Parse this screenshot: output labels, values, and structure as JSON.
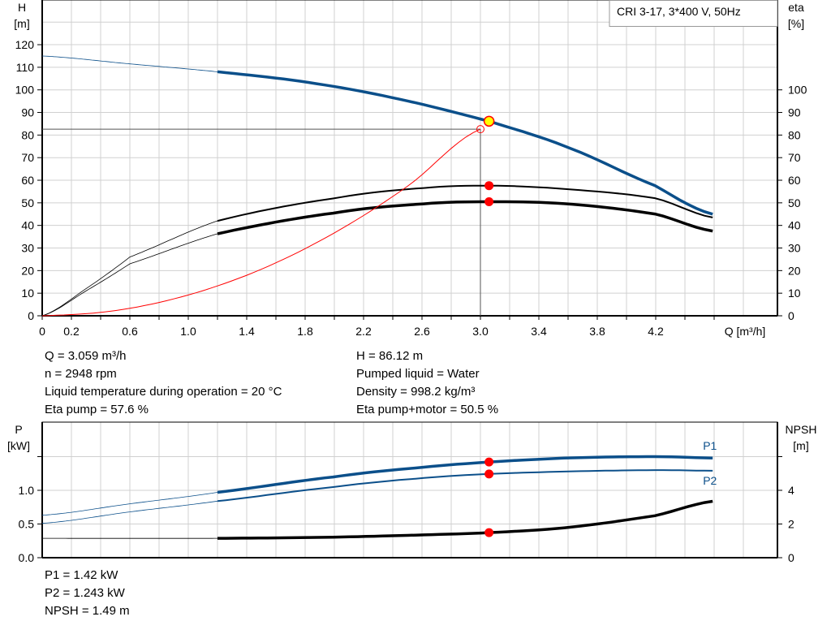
{
  "legend_title": "CRI 3-17, 3*400 V, 50Hz",
  "colors": {
    "head": "#0b4f8a",
    "eta": "#000000",
    "system": "#ff0000",
    "op_point": "#ff0000",
    "op_point_head_fill": "#ffff00",
    "grid": "#d0d0d0"
  },
  "chart_data": [
    {
      "type": "line",
      "x_axis": {
        "label": "Q [m³/h]",
        "range": [
          0,
          5.0
        ],
        "tick_labels": [
          "0",
          "0.2",
          "0.6",
          "1.0",
          "1.4",
          "1.8",
          "2.2",
          "2.6",
          "3.0",
          "3.4",
          "3.8",
          "4.2"
        ],
        "tick_values": [
          0,
          0.2,
          0.6,
          1.0,
          1.4,
          1.8,
          2.2,
          2.6,
          3.0,
          3.4,
          3.8,
          4.2
        ]
      },
      "y_axis_left": {
        "label_line1": "H",
        "label_line2": "[m]",
        "range": [
          0,
          120
        ],
        "ticks": [
          0,
          10,
          20,
          30,
          40,
          50,
          60,
          70,
          80,
          90,
          100,
          110,
          120
        ]
      },
      "y_axis_right": {
        "label_line1": "eta",
        "label_line2": "[%]",
        "range": [
          0,
          100
        ],
        "ticks": [
          0,
          10,
          20,
          30,
          40,
          50,
          60,
          70,
          80,
          90,
          100
        ]
      },
      "grid": true,
      "series": [
        {
          "id": "head",
          "axis": "left",
          "thin_below": 1.2,
          "points": [
            [
              0,
              115
            ],
            [
              0.6,
              111.5
            ],
            [
              1.2,
              108
            ],
            [
              1.8,
              103.5
            ],
            [
              2.4,
              96.5
            ],
            [
              3.059,
              86.12
            ],
            [
              3.6,
              74.5
            ],
            [
              4.2,
              57.5
            ],
            [
              4.59,
              45
            ]
          ]
        },
        {
          "id": "eta_pump",
          "axis": "right",
          "thin_below": 1.2,
          "points": [
            [
              0,
              0
            ],
            [
              0.3,
              12
            ],
            [
              0.6,
              26
            ],
            [
              1.2,
              42
            ],
            [
              2.0,
              52
            ],
            [
              2.6,
              56.5
            ],
            [
              3.059,
              57.6
            ],
            [
              3.6,
              56
            ],
            [
              4.2,
              52
            ],
            [
              4.59,
              43.5
            ]
          ]
        },
        {
          "id": "eta_total",
          "axis": "right",
          "thin_below": 1.2,
          "points": [
            [
              0,
              0
            ],
            [
              0.3,
              11
            ],
            [
              0.6,
              23
            ],
            [
              1.2,
              36.3
            ],
            [
              2.0,
              45.5
            ],
            [
              2.6,
              49.5
            ],
            [
              3.059,
              50.5
            ],
            [
              3.6,
              49.5
            ],
            [
              4.2,
              45
            ],
            [
              4.59,
              37.5
            ]
          ]
        },
        {
          "id": "system_curve",
          "axis": "left",
          "points": [
            [
              0,
              0
            ],
            [
              0.5,
              2.3
            ],
            [
              1.0,
              9.2
            ],
            [
              1.5,
              20.6
            ],
            [
              2.0,
              36.7
            ],
            [
              2.5,
              57.3
            ],
            [
              3.0,
              82.6
            ]
          ]
        }
      ],
      "duty_point": {
        "Q": 3.0,
        "H": 82.6
      },
      "operating_point": {
        "Q": 3.059,
        "H": 86.12,
        "eta_pump": 57.6,
        "eta_total": 50.5
      }
    },
    {
      "type": "line",
      "x_axis": {
        "range": [
          0,
          5.0
        ]
      },
      "y_axis_left": {
        "label_line1": "P",
        "label_line2": "[kW]",
        "range": [
          0,
          2.0
        ],
        "ticks": [
          0,
          0.5,
          1.0,
          1.5
        ],
        "tick_labels": [
          "0.0",
          "0.5",
          "1.0",
          ""
        ]
      },
      "y_axis_right": {
        "label_line1": "NPSH",
        "label_line2": "[m]",
        "range": [
          0,
          8
        ],
        "ticks": [
          0,
          2,
          4,
          6
        ],
        "tick_labels": [
          "0",
          "2",
          "4",
          ""
        ]
      },
      "grid": true,
      "series": [
        {
          "id": "P1",
          "name": "P1",
          "axis": "left",
          "thin_below": 1.2,
          "points": [
            [
              0,
              0.63
            ],
            [
              0.6,
              0.8
            ],
            [
              1.2,
              0.97
            ],
            [
              2.0,
              1.2
            ],
            [
              2.6,
              1.34
            ],
            [
              3.059,
              1.42
            ],
            [
              3.6,
              1.48
            ],
            [
              4.2,
              1.5
            ],
            [
              4.59,
              1.48
            ]
          ]
        },
        {
          "id": "P2",
          "name": "P2",
          "axis": "left",
          "thin_below": 1.2,
          "points": [
            [
              0,
              0.51
            ],
            [
              0.6,
              0.68
            ],
            [
              1.2,
              0.84
            ],
            [
              2.0,
              1.05
            ],
            [
              2.6,
              1.18
            ],
            [
              3.059,
              1.243
            ],
            [
              3.6,
              1.28
            ],
            [
              4.2,
              1.3
            ],
            [
              4.59,
              1.29
            ]
          ]
        },
        {
          "id": "NPSH",
          "axis": "right",
          "thin_below": 1.2,
          "points": [
            [
              0,
              1.15
            ],
            [
              1.2,
              1.15
            ],
            [
              2.0,
              1.22
            ],
            [
              2.6,
              1.35
            ],
            [
              3.059,
              1.49
            ],
            [
              3.6,
              1.8
            ],
            [
              4.2,
              2.5
            ],
            [
              4.59,
              3.35
            ]
          ]
        }
      ],
      "operating_point": {
        "Q": 3.059,
        "P1": 1.42,
        "P2": 1.243,
        "NPSH": 1.49
      }
    }
  ],
  "results": {
    "q": "Q = 3.059 m³/h",
    "n": "n = 2948 rpm",
    "temp": "Liquid temperature during operation = 20 °C",
    "eta_pump": "Eta pump = 57.6 %",
    "h": "H = 86.12 m",
    "liquid": "Pumped liquid = Water",
    "density": "Density = 998.2 kg/m³",
    "eta_total": "Eta pump+motor = 50.5 %",
    "p1": "P1 = 1.42 kW",
    "p2": "P2 = 1.243 kW",
    "npsh": "NPSH = 1.49 m"
  }
}
